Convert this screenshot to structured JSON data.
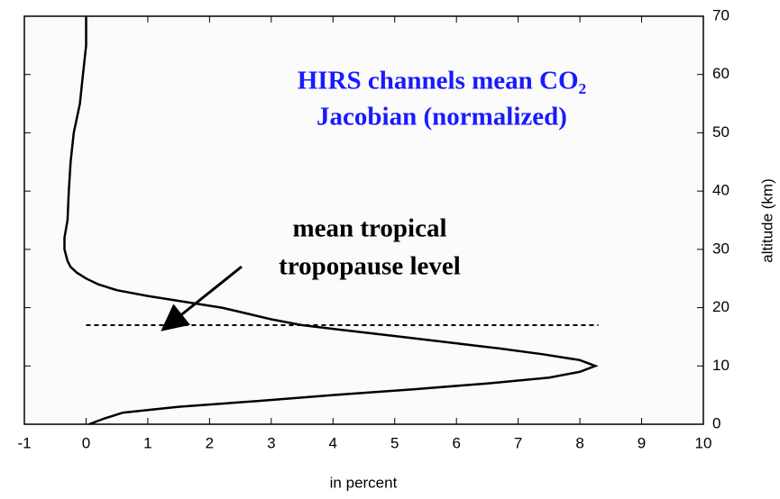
{
  "chart_data": {
    "type": "line",
    "title_lines": [
      "HIRS channels mean CO₂",
      "Jacobian (normalized)"
    ],
    "xlabel": "in percent",
    "ylabel": "altitude (km)",
    "annotation_lines": [
      "mean tropical",
      "tropopause level"
    ],
    "reference_line": {
      "y": 17,
      "x": [
        0,
        8.3
      ]
    },
    "xlim": [
      -1,
      10
    ],
    "xticks": [
      -1,
      0,
      1,
      2,
      3,
      4,
      5,
      6,
      7,
      8,
      9,
      10
    ],
    "ylim": [
      0,
      70
    ],
    "yticks": [
      0,
      10,
      20,
      30,
      40,
      50,
      60,
      70
    ],
    "series": [
      {
        "color": "#000000",
        "x": [
          0.05,
          0.3,
          0.6,
          1.5,
          2.8,
          4.0,
          5.3,
          6.5,
          7.5,
          8.0,
          8.25,
          8.0,
          7.4,
          6.7,
          5.9,
          5.1,
          4.3,
          3.5,
          3.0,
          2.6,
          2.2,
          1.6,
          1.0,
          0.5,
          0.2,
          0.0,
          -0.15,
          -0.25,
          -0.3,
          -0.35,
          -0.35,
          -0.3,
          -0.28,
          -0.25,
          -0.2,
          -0.1,
          -0.05,
          0.0,
          0.0
        ],
        "y": [
          0,
          1,
          2,
          3,
          4,
          5,
          6,
          7,
          8,
          9,
          10,
          11,
          12,
          13,
          14,
          15,
          16,
          17,
          18,
          19,
          20,
          21,
          22,
          23,
          24,
          25,
          26,
          27,
          28,
          30,
          32,
          35,
          40,
          45,
          50,
          55,
          60,
          65,
          70
        ]
      }
    ]
  }
}
